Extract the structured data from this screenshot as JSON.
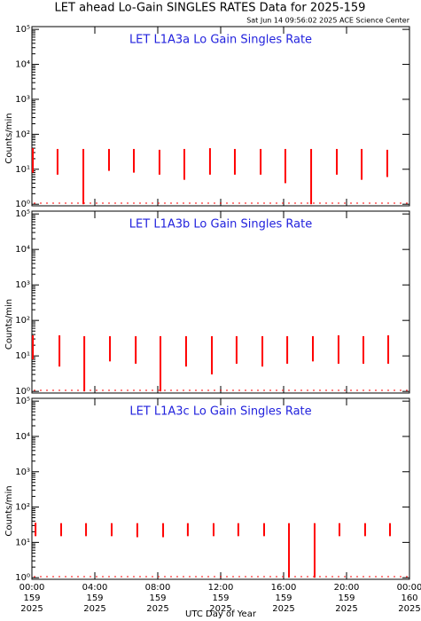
{
  "title": "LET ahead Lo-Gain SINGLES RATES Data for 2025-159",
  "subtitle": "Sat Jun 14 09:56:02 2025 ACE Science Center",
  "xlabel": "UTC Day of Year",
  "chart_data": [
    {
      "type": "range",
      "title": "LET L1A3a Lo Gain Singles Rate",
      "ylabel": "Counts/min",
      "color": "#ff0000",
      "log_y": true,
      "xlim": [
        0,
        24
      ],
      "xticks": [
        0,
        4,
        8,
        12,
        16,
        20,
        24
      ],
      "ylim": [
        0.9,
        120000
      ],
      "yticks": [
        {
          "value": 1,
          "label": "10⁰"
        },
        {
          "value": 10,
          "label": "10¹"
        },
        {
          "value": 100,
          "label": "10²"
        },
        {
          "value": 1000,
          "label": "10³"
        },
        {
          "value": 10000,
          "label": "10⁴"
        },
        {
          "value": 100000,
          "label": "10⁵"
        }
      ],
      "x": [
        0.06,
        1.63,
        3.27,
        4.9,
        6.48,
        8.11,
        9.69,
        11.32,
        12.9,
        14.54,
        16.11,
        17.75,
        19.38,
        20.96,
        22.59
      ],
      "highs": [
        40,
        38,
        38,
        38,
        38,
        36,
        38,
        40,
        38,
        38,
        38,
        38,
        38,
        38,
        36
      ],
      "lows": [
        8,
        7,
        1,
        9,
        8,
        7,
        5,
        7,
        7,
        7,
        4,
        1,
        7,
        5,
        6
      ]
    },
    {
      "type": "range",
      "title": "LET L1A3b Lo Gain Singles Rate",
      "ylabel": "Counts/min",
      "color": "#ff0000",
      "log_y": true,
      "xlim": [
        0,
        24
      ],
      "xticks": [
        0,
        4,
        8,
        12,
        16,
        20,
        24
      ],
      "ylim": [
        0.9,
        120000
      ],
      "yticks": [
        {
          "value": 1,
          "label": "10⁰"
        },
        {
          "value": 10,
          "label": "10¹"
        },
        {
          "value": 100,
          "label": "10²"
        },
        {
          "value": 1000,
          "label": "10³"
        },
        {
          "value": 10000,
          "label": "10⁴"
        },
        {
          "value": 100000,
          "label": "10⁵"
        }
      ],
      "x": [
        0.06,
        1.75,
        3.33,
        4.96,
        6.6,
        8.17,
        9.8,
        11.44,
        13.01,
        14.65,
        16.23,
        17.86,
        19.49,
        21.07,
        22.65
      ],
      "highs": [
        38,
        38,
        36,
        36,
        36,
        36,
        36,
        36,
        36,
        36,
        36,
        36,
        38,
        36,
        38
      ],
      "lows": [
        8,
        5,
        1,
        7,
        6,
        1,
        5,
        3,
        6,
        5,
        6,
        7,
        6,
        6,
        6
      ]
    },
    {
      "type": "range",
      "title": "LET L1A3c Lo Gain Singles Rate",
      "ylabel": "Counts/min",
      "color": "#ff0000",
      "log_y": true,
      "xlim": [
        0,
        24
      ],
      "xticks": [
        {
          "value": 0,
          "label": [
            "00:00",
            "159",
            "2025"
          ]
        },
        {
          "value": 4,
          "label": [
            "04:00",
            "159",
            "2025"
          ]
        },
        {
          "value": 8,
          "label": [
            "08:00",
            "159",
            "2025"
          ]
        },
        {
          "value": 12,
          "label": [
            "12:00",
            "159",
            "2025"
          ]
        },
        {
          "value": 16,
          "label": [
            "16:00",
            "159",
            "2025"
          ]
        },
        {
          "value": 20,
          "label": [
            "20:00",
            "159",
            "2025"
          ]
        },
        {
          "value": 24,
          "label": [
            "00:00",
            "160",
            "2025"
          ]
        }
      ],
      "ylim": [
        0.9,
        120000
      ],
      "yticks": [
        {
          "value": 1,
          "label": "10⁰"
        },
        {
          "value": 10,
          "label": "10¹"
        },
        {
          "value": 100,
          "label": "10²"
        },
        {
          "value": 1000,
          "label": "10³"
        },
        {
          "value": 10000,
          "label": "10⁴"
        },
        {
          "value": 100000,
          "label": "10⁵"
        }
      ],
      "x": [
        0.23,
        1.86,
        3.44,
        5.07,
        6.7,
        8.34,
        9.91,
        11.55,
        13.12,
        14.76,
        16.34,
        17.97,
        19.55,
        21.18,
        22.76
      ],
      "highs": [
        36,
        35,
        35,
        35,
        35,
        35,
        35,
        35,
        35,
        35,
        35,
        35,
        35,
        35,
        35
      ],
      "lows": [
        15,
        15,
        15,
        15,
        14,
        14,
        15,
        15,
        15,
        15,
        1,
        1,
        15,
        15,
        15
      ]
    }
  ]
}
